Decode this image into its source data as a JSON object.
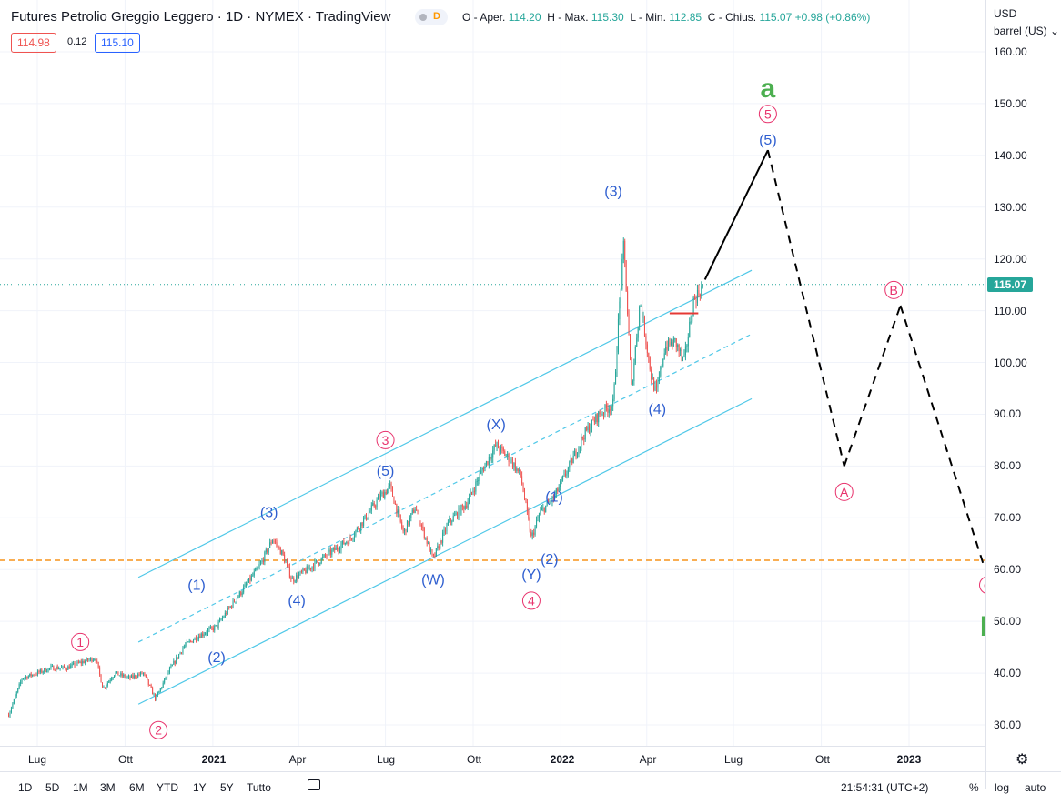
{
  "header": {
    "title": "Futures Petrolio Greggio Leggero · 1D · NYMEX · TradingView",
    "badge_delay": "D",
    "ohlc": {
      "o_label": "O - Aper.",
      "o_value": "114.20",
      "h_label": "H - Max.",
      "h_value": "115.30",
      "l_label": "L - Min.",
      "l_value": "112.85",
      "c_label": "C - Chius.",
      "c_value": "115.07",
      "change": "+0.98 (+0.86%)"
    },
    "bid": "114.98",
    "spread": "0.12",
    "ask": "115.10"
  },
  "price_axis": {
    "currency": "USD",
    "unit": "barrel (US)",
    "current_price": "115.07",
    "ticks": [
      "160.00",
      "150.00",
      "140.00",
      "130.00",
      "120.00",
      "110.00",
      "100.00",
      "90.00",
      "80.00",
      "70.00",
      "60.00",
      "50.00",
      "40.00",
      "30.00"
    ]
  },
  "time_axis": {
    "labels": [
      {
        "text": "Lug",
        "bold": false
      },
      {
        "text": "Ott",
        "bold": false
      },
      {
        "text": "2021",
        "bold": true
      },
      {
        "text": "Apr",
        "bold": false
      },
      {
        "text": "Lug",
        "bold": false
      },
      {
        "text": "Ott",
        "bold": false
      },
      {
        "text": "2022",
        "bold": true
      },
      {
        "text": "Apr",
        "bold": false
      },
      {
        "text": "Lug",
        "bold": false
      },
      {
        "text": "Ott",
        "bold": false
      },
      {
        "text": "2023",
        "bold": true
      }
    ]
  },
  "bottom_bar": {
    "ranges": [
      "1D",
      "5D",
      "1M",
      "3M",
      "6M",
      "YTD",
      "1Y",
      "5Y",
      "Tutto"
    ],
    "clock": "21:54:31 (UTC+2)",
    "percent": "%",
    "log": "log",
    "auto": "auto"
  },
  "colors": {
    "up": "#26a69a",
    "down": "#ef5350",
    "channel": "#50c8e8",
    "wave_blue": "#2f5fd0",
    "wave_red": "#e8336d",
    "wave_green": "#4caf50",
    "support": "#f7931a"
  },
  "chart_data": {
    "type": "candlestick",
    "symbol": "Futures Petrolio Greggio Leggero",
    "interval": "1D",
    "exchange": "NYMEX",
    "ylim": [
      27,
      165
    ],
    "y_scale": "linear",
    "last_close": 115.07,
    "horizontal_levels": [
      {
        "value": 115.07,
        "style": "dotted",
        "color": "#26a69a"
      },
      {
        "value": 61.8,
        "style": "dashed",
        "color": "#f7931a"
      }
    ],
    "price_path": [
      [
        "2020-06-01",
        32
      ],
      [
        "2020-06-15",
        39
      ],
      [
        "2020-07-01",
        40
      ],
      [
        "2020-07-15",
        41
      ],
      [
        "2020-08-01",
        41
      ],
      [
        "2020-08-15",
        42
      ],
      [
        "2020-08-31",
        43
      ],
      [
        "2020-09-08",
        37
      ],
      [
        "2020-09-20",
        40
      ],
      [
        "2020-10-05",
        39
      ],
      [
        "2020-10-20",
        40
      ],
      [
        "2020-11-02",
        35
      ],
      [
        "2020-11-15",
        40
      ],
      [
        "2020-12-01",
        45
      ],
      [
        "2020-12-15",
        47
      ],
      [
        "2021-01-05",
        49
      ],
      [
        "2021-01-20",
        53
      ],
      [
        "2021-02-05",
        57
      ],
      [
        "2021-02-20",
        61
      ],
      [
        "2021-03-05",
        66
      ],
      [
        "2021-03-15",
        63
      ],
      [
        "2021-03-25",
        58
      ],
      [
        "2021-04-10",
        60
      ],
      [
        "2021-04-25",
        62
      ],
      [
        "2021-05-10",
        64
      ],
      [
        "2021-05-25",
        66
      ],
      [
        "2021-06-10",
        70
      ],
      [
        "2021-06-25",
        74
      ],
      [
        "2021-07-06",
        76
      ],
      [
        "2021-07-20",
        67
      ],
      [
        "2021-08-01",
        72
      ],
      [
        "2021-08-20",
        62
      ],
      [
        "2021-09-05",
        69
      ],
      [
        "2021-09-25",
        73
      ],
      [
        "2021-10-10",
        79
      ],
      [
        "2021-10-25",
        84
      ],
      [
        "2021-11-10",
        81
      ],
      [
        "2021-11-20",
        78
      ],
      [
        "2021-12-01",
        66
      ],
      [
        "2021-12-10",
        71
      ],
      [
        "2021-12-25",
        74
      ],
      [
        "2022-01-10",
        80
      ],
      [
        "2022-01-25",
        86
      ],
      [
        "2022-02-10",
        90
      ],
      [
        "2022-02-25",
        92
      ],
      [
        "2022-03-03",
        110
      ],
      [
        "2022-03-08",
        123
      ],
      [
        "2022-03-16",
        95
      ],
      [
        "2022-03-25",
        112
      ],
      [
        "2022-04-06",
        97
      ],
      [
        "2022-04-11",
        94
      ],
      [
        "2022-04-20",
        103
      ],
      [
        "2022-05-01",
        104
      ],
      [
        "2022-05-10",
        100
      ],
      [
        "2022-05-20",
        112
      ],
      [
        "2022-05-31",
        115
      ]
    ],
    "projection": [
      {
        "from": [
          "2022-06-01",
          116
        ],
        "to": [
          "2022-08-06",
          141
        ],
        "style": "solid"
      },
      {
        "from": [
          "2022-08-06",
          141
        ],
        "to": [
          "2022-10-25",
          80
        ],
        "style": "dashed"
      },
      {
        "from": [
          "2022-10-25",
          80
        ],
        "to": [
          "2022-12-23",
          111
        ],
        "style": "dashed"
      },
      {
        "from": [
          "2022-12-23",
          111
        ],
        "to": [
          "2023-03-20",
          61
        ],
        "style": "dashed"
      }
    ],
    "red_level": {
      "from": "2022-04-25",
      "to": "2022-05-25",
      "value": 109.5
    },
    "channel_lines": [
      {
        "from": [
          "2020-10-15",
          58.5
        ],
        "to": [
          "2022-07-20",
          117.8
        ],
        "style": "solid"
      },
      {
        "from": [
          "2020-10-15",
          46
        ],
        "to": [
          "2022-07-20",
          105.5
        ],
        "style": "dashed"
      },
      {
        "from": [
          "2020-10-15",
          34
        ],
        "to": [
          "2022-07-20",
          93
        ],
        "style": "solid"
      }
    ],
    "wave_labels": [
      {
        "text": "1",
        "style": "circle",
        "color": "red",
        "date": "2020-08-15",
        "price": 46
      },
      {
        "text": "2",
        "style": "circle",
        "color": "red",
        "date": "2020-11-05",
        "price": 29
      },
      {
        "text": "(1)",
        "style": "paren",
        "color": "blue",
        "date": "2020-12-15",
        "price": 57
      },
      {
        "text": "(2)",
        "style": "paren",
        "color": "blue",
        "date": "2021-01-05",
        "price": 43
      },
      {
        "text": "(3)",
        "style": "paren",
        "color": "blue",
        "date": "2021-03-01",
        "price": 71
      },
      {
        "text": "(4)",
        "style": "paren",
        "color": "blue",
        "date": "2021-03-30",
        "price": 54
      },
      {
        "text": "(5)",
        "style": "paren",
        "color": "blue",
        "date": "2021-07-01",
        "price": 79
      },
      {
        "text": "3",
        "style": "circle",
        "color": "red",
        "date": "2021-07-01",
        "price": 85
      },
      {
        "text": "(W)",
        "style": "paren",
        "color": "blue",
        "date": "2021-08-20",
        "price": 58
      },
      {
        "text": "(X)",
        "style": "paren",
        "color": "blue",
        "date": "2021-10-25",
        "price": 88
      },
      {
        "text": "(Y)",
        "style": "paren",
        "color": "blue",
        "date": "2021-12-01",
        "price": 59
      },
      {
        "text": "4",
        "style": "circle",
        "color": "red",
        "date": "2021-12-01",
        "price": 54
      },
      {
        "text": "(1)",
        "style": "paren",
        "color": "blue",
        "date": "2021-12-25",
        "price": 74
      },
      {
        "text": "(2)",
        "style": "paren",
        "color": "blue",
        "date": "2021-12-20",
        "price": 62
      },
      {
        "text": "(3)",
        "style": "paren",
        "color": "blue",
        "date": "2022-02-25",
        "price": 133
      },
      {
        "text": "(4)",
        "style": "paren",
        "color": "blue",
        "date": "2022-04-12",
        "price": 91
      },
      {
        "text": "(5)",
        "style": "paren",
        "color": "blue",
        "date": "2022-08-06",
        "price": 143
      },
      {
        "text": "5",
        "style": "circle",
        "color": "red",
        "date": "2022-08-06",
        "price": 148
      },
      {
        "text": "a",
        "style": "big",
        "color": "green",
        "date": "2022-08-06",
        "price": 153
      },
      {
        "text": "A",
        "style": "circle",
        "color": "red",
        "date": "2022-10-25",
        "price": 75
      },
      {
        "text": "B",
        "style": "circle",
        "color": "red",
        "date": "2022-12-16",
        "price": 114
      },
      {
        "text": "C",
        "style": "circle",
        "color": "red",
        "date": "2023-03-25",
        "price": 57
      },
      {
        "text": "b",
        "style": "big",
        "color": "green",
        "date": "2023-03-25",
        "price": 49
      }
    ]
  }
}
